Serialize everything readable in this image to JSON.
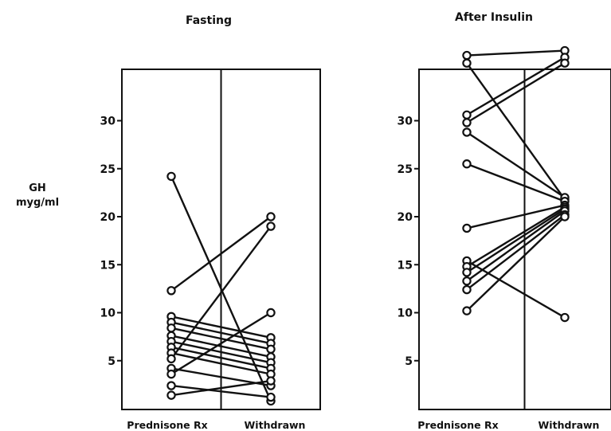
{
  "ylabel_line1": "GH",
  "ylabel_line2": "myg/ml",
  "chart_data": [
    {
      "type": "scatter",
      "title": "Fasting",
      "categories": [
        "Prednisone Rx",
        "Withdrawn"
      ],
      "ylim": [
        0,
        35
      ],
      "yticks": [
        5,
        10,
        15,
        20,
        25,
        30
      ],
      "grid": false,
      "pairs": [
        [
          24.2,
          0.8
        ],
        [
          12.3,
          20.0
        ],
        [
          9.6,
          7.4
        ],
        [
          9.0,
          6.8
        ],
        [
          8.4,
          6.2
        ],
        [
          7.6,
          5.4
        ],
        [
          7.0,
          4.8
        ],
        [
          6.4,
          4.2
        ],
        [
          5.8,
          3.6
        ],
        [
          5.2,
          19.0
        ],
        [
          4.2,
          2.4
        ],
        [
          3.6,
          10.0
        ],
        [
          2.4,
          1.2
        ],
        [
          1.4,
          2.9
        ]
      ]
    },
    {
      "type": "scatter",
      "title": "After Insulin",
      "categories": [
        "Prednisone Rx",
        "Withdrawn"
      ],
      "ylim": [
        0,
        35
      ],
      "yticks": [
        5,
        10,
        15,
        20,
        25,
        30
      ],
      "grid": false,
      "pairs": [
        [
          36.8,
          37.3
        ],
        [
          36.0,
          21.8
        ],
        [
          30.6,
          36.6
        ],
        [
          29.8,
          36.0
        ],
        [
          28.8,
          22.0
        ],
        [
          25.5,
          21.6
        ],
        [
          18.8,
          21.2
        ],
        [
          15.4,
          9.5
        ],
        [
          14.8,
          21.0
        ],
        [
          14.2,
          20.8
        ],
        [
          13.3,
          20.6
        ],
        [
          12.4,
          20.2
        ],
        [
          10.2,
          20.0
        ]
      ]
    }
  ]
}
